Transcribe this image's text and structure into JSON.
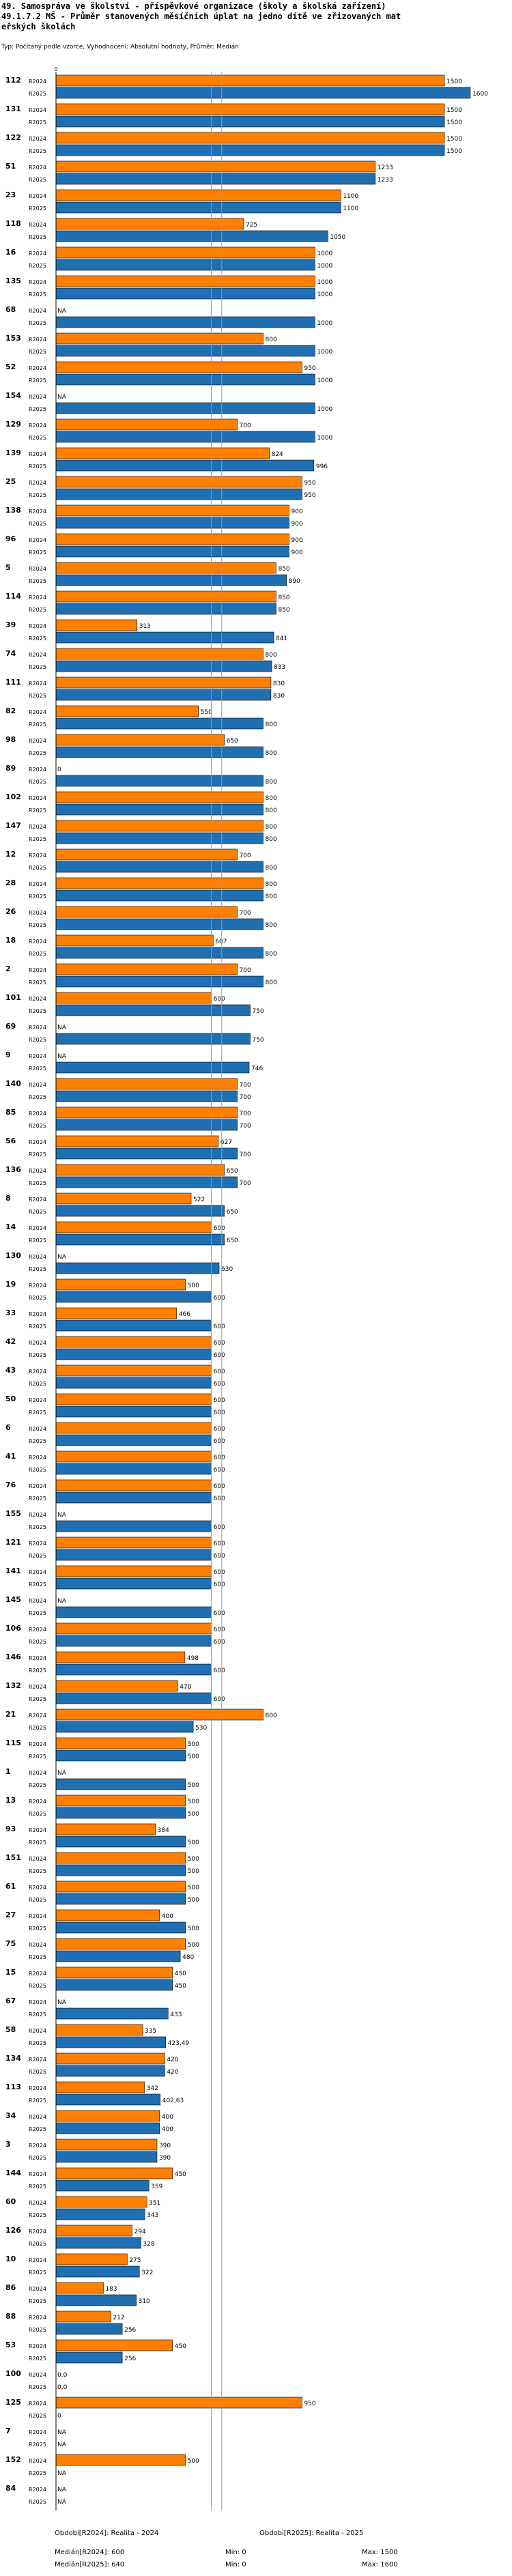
{
  "header": {
    "line1": "49. Samospráva ve školství - příspěvkové organizace (školy a školská zařízení)",
    "line2": "49.1.7.2 MŠ - Průměr stanovených měsíčních úplat na jedno dítě ve zřizovaných mat",
    "line3": "eřských školách",
    "subtitle": "Typ: Počítaný podle vzorce, Vyhodnocení: Absolutní hodnoty, Průměr: Medián"
  },
  "series_names": [
    "R2024",
    "R2025"
  ],
  "colors": {
    "R2024": "#ff8000",
    "R2025": "#1f6fb2",
    "median": "#ff8000",
    "median2025": "#999999"
  },
  "chart_data": {
    "type": "bar",
    "orientation": "horizontal",
    "xlim": [
      0,
      1600
    ],
    "median_lines": [
      {
        "name": "Medián(R2024)",
        "value": 600
      },
      {
        "name": "Medián(R2025)",
        "value": 640
      }
    ],
    "rows": [
      {
        "id": "112",
        "v": [
          1500,
          1600
        ],
        "l": [
          "1500",
          "1600"
        ]
      },
      {
        "id": "131",
        "v": [
          1500,
          1500
        ],
        "l": [
          "1500",
          "1500"
        ]
      },
      {
        "id": "122",
        "v": [
          1500,
          1500
        ],
        "l": [
          "1500",
          "1500"
        ]
      },
      {
        "id": "51",
        "v": [
          1233,
          1233
        ],
        "l": [
          "1233",
          "1233"
        ]
      },
      {
        "id": "23",
        "v": [
          1100,
          1100
        ],
        "l": [
          "1100",
          "1100"
        ]
      },
      {
        "id": "118",
        "v": [
          725,
          1050
        ],
        "l": [
          "725",
          "1050"
        ]
      },
      {
        "id": "16",
        "v": [
          1000,
          1000
        ],
        "l": [
          "1000",
          "1000"
        ]
      },
      {
        "id": "135",
        "v": [
          1000,
          1000
        ],
        "l": [
          "1000",
          "1000"
        ]
      },
      {
        "id": "68",
        "v": [
          null,
          1000
        ],
        "l": [
          "NA",
          "1000"
        ]
      },
      {
        "id": "153",
        "v": [
          800,
          1000
        ],
        "l": [
          "800",
          "1000"
        ]
      },
      {
        "id": "52",
        "v": [
          950,
          1000
        ],
        "l": [
          "950",
          "1000"
        ]
      },
      {
        "id": "154",
        "v": [
          null,
          1000
        ],
        "l": [
          "NA",
          "1000"
        ]
      },
      {
        "id": "129",
        "v": [
          700,
          1000
        ],
        "l": [
          "700",
          "1000"
        ]
      },
      {
        "id": "139",
        "v": [
          824,
          996
        ],
        "l": [
          "824",
          "996"
        ]
      },
      {
        "id": "25",
        "v": [
          950,
          950
        ],
        "l": [
          "950",
          "950"
        ]
      },
      {
        "id": "138",
        "v": [
          900,
          900
        ],
        "l": [
          "900",
          "900"
        ]
      },
      {
        "id": "96",
        "v": [
          900,
          900
        ],
        "l": [
          "900",
          "900"
        ]
      },
      {
        "id": "5",
        "v": [
          850,
          890
        ],
        "l": [
          "850",
          "890"
        ]
      },
      {
        "id": "114",
        "v": [
          850,
          850
        ],
        "l": [
          "850",
          "850"
        ]
      },
      {
        "id": "39",
        "v": [
          313,
          841
        ],
        "l": [
          "313",
          "841"
        ]
      },
      {
        "id": "74",
        "v": [
          800,
          833
        ],
        "l": [
          "800",
          "833"
        ]
      },
      {
        "id": "111",
        "v": [
          830,
          830
        ],
        "l": [
          "830",
          "830"
        ]
      },
      {
        "id": "82",
        "v": [
          550,
          800
        ],
        "l": [
          "550",
          "800"
        ]
      },
      {
        "id": "98",
        "v": [
          650,
          800
        ],
        "l": [
          "650",
          "800"
        ]
      },
      {
        "id": "89",
        "v": [
          0,
          800
        ],
        "l": [
          "0",
          "800"
        ]
      },
      {
        "id": "102",
        "v": [
          800,
          800
        ],
        "l": [
          "800",
          "800"
        ]
      },
      {
        "id": "147",
        "v": [
          800,
          800
        ],
        "l": [
          "800",
          "800"
        ]
      },
      {
        "id": "12",
        "v": [
          700,
          800
        ],
        "l": [
          "700",
          "800"
        ]
      },
      {
        "id": "28",
        "v": [
          800,
          800
        ],
        "l": [
          "800",
          "800"
        ]
      },
      {
        "id": "26",
        "v": [
          700,
          800
        ],
        "l": [
          "700",
          "800"
        ]
      },
      {
        "id": "18",
        "v": [
          607,
          800
        ],
        "l": [
          "607",
          "800"
        ]
      },
      {
        "id": "2",
        "v": [
          700,
          800
        ],
        "l": [
          "700",
          "800"
        ]
      },
      {
        "id": "101",
        "v": [
          600,
          750
        ],
        "l": [
          "600",
          "750"
        ]
      },
      {
        "id": "69",
        "v": [
          null,
          750
        ],
        "l": [
          "NA",
          "750"
        ]
      },
      {
        "id": "9",
        "v": [
          null,
          746
        ],
        "l": [
          "NA",
          "746"
        ]
      },
      {
        "id": "140",
        "v": [
          700,
          700
        ],
        "l": [
          "700",
          "700"
        ]
      },
      {
        "id": "85",
        "v": [
          700,
          700
        ],
        "l": [
          "700",
          "700"
        ]
      },
      {
        "id": "56",
        "v": [
          627,
          700
        ],
        "l": [
          "627",
          "700"
        ]
      },
      {
        "id": "136",
        "v": [
          650,
          700
        ],
        "l": [
          "650",
          "700"
        ]
      },
      {
        "id": "8",
        "v": [
          522,
          650
        ],
        "l": [
          "522",
          "650"
        ]
      },
      {
        "id": "14",
        "v": [
          600,
          650
        ],
        "l": [
          "600",
          "650"
        ]
      },
      {
        "id": "130",
        "v": [
          null,
          630
        ],
        "l": [
          "NA",
          "630"
        ]
      },
      {
        "id": "19",
        "v": [
          500,
          600
        ],
        "l": [
          "500",
          "600"
        ]
      },
      {
        "id": "33",
        "v": [
          466,
          600
        ],
        "l": [
          "466",
          "600"
        ]
      },
      {
        "id": "42",
        "v": [
          600,
          600
        ],
        "l": [
          "600",
          "600"
        ]
      },
      {
        "id": "43",
        "v": [
          600,
          600
        ],
        "l": [
          "600",
          "600"
        ]
      },
      {
        "id": "50",
        "v": [
          600,
          600
        ],
        "l": [
          "600",
          "600"
        ]
      },
      {
        "id": "6",
        "v": [
          600,
          600
        ],
        "l": [
          "600",
          "600"
        ]
      },
      {
        "id": "41",
        "v": [
          600,
          600
        ],
        "l": [
          "600",
          "600"
        ]
      },
      {
        "id": "76",
        "v": [
          600,
          600
        ],
        "l": [
          "600",
          "600"
        ]
      },
      {
        "id": "155",
        "v": [
          null,
          600
        ],
        "l": [
          "NA",
          "600"
        ]
      },
      {
        "id": "121",
        "v": [
          600,
          600
        ],
        "l": [
          "600",
          "600"
        ]
      },
      {
        "id": "141",
        "v": [
          600,
          600
        ],
        "l": [
          "600",
          "600"
        ]
      },
      {
        "id": "145",
        "v": [
          null,
          600
        ],
        "l": [
          "NA",
          "600"
        ]
      },
      {
        "id": "106",
        "v": [
          600,
          600
        ],
        "l": [
          "600",
          "600"
        ]
      },
      {
        "id": "146",
        "v": [
          498,
          600
        ],
        "l": [
          "498",
          "600"
        ]
      },
      {
        "id": "132",
        "v": [
          470,
          600
        ],
        "l": [
          "470",
          "600"
        ]
      },
      {
        "id": "21",
        "v": [
          800,
          530
        ],
        "l": [
          "800",
          "530"
        ]
      },
      {
        "id": "115",
        "v": [
          500,
          500
        ],
        "l": [
          "500",
          "500"
        ]
      },
      {
        "id": "1",
        "v": [
          null,
          500
        ],
        "l": [
          "NA",
          "500"
        ]
      },
      {
        "id": "13",
        "v": [
          500,
          500
        ],
        "l": [
          "500",
          "500"
        ]
      },
      {
        "id": "93",
        "v": [
          384,
          500
        ],
        "l": [
          "384",
          "500"
        ]
      },
      {
        "id": "151",
        "v": [
          500,
          500
        ],
        "l": [
          "500",
          "500"
        ]
      },
      {
        "id": "61",
        "v": [
          500,
          500
        ],
        "l": [
          "500",
          "500"
        ]
      },
      {
        "id": "27",
        "v": [
          400,
          500
        ],
        "l": [
          "400",
          "500"
        ]
      },
      {
        "id": "75",
        "v": [
          500,
          480
        ],
        "l": [
          "500",
          "480"
        ]
      },
      {
        "id": "15",
        "v": [
          450,
          450
        ],
        "l": [
          "450",
          "450"
        ]
      },
      {
        "id": "67",
        "v": [
          null,
          433
        ],
        "l": [
          "NA",
          "433"
        ]
      },
      {
        "id": "58",
        "v": [
          335,
          423.49
        ],
        "l": [
          "335",
          "423,49"
        ]
      },
      {
        "id": "134",
        "v": [
          420,
          420
        ],
        "l": [
          "420",
          "420"
        ]
      },
      {
        "id": "113",
        "v": [
          342,
          402.63
        ],
        "l": [
          "342",
          "402,63"
        ]
      },
      {
        "id": "34",
        "v": [
          400,
          400
        ],
        "l": [
          "400",
          "400"
        ]
      },
      {
        "id": "3",
        "v": [
          390,
          390
        ],
        "l": [
          "390",
          "390"
        ]
      },
      {
        "id": "144",
        "v": [
          450,
          359
        ],
        "l": [
          "450",
          "359"
        ]
      },
      {
        "id": "60",
        "v": [
          351,
          343
        ],
        "l": [
          "351",
          "343"
        ]
      },
      {
        "id": "126",
        "v": [
          294,
          328
        ],
        "l": [
          "294",
          "328"
        ]
      },
      {
        "id": "10",
        "v": [
          275,
          322
        ],
        "l": [
          "275",
          "322"
        ]
      },
      {
        "id": "86",
        "v": [
          183,
          310
        ],
        "l": [
          "183",
          "310"
        ]
      },
      {
        "id": "88",
        "v": [
          212,
          256
        ],
        "l": [
          "212",
          "256"
        ]
      },
      {
        "id": "53",
        "v": [
          450,
          256
        ],
        "l": [
          "450",
          "256"
        ]
      },
      {
        "id": "100",
        "v": [
          0,
          0
        ],
        "l": [
          "0,0",
          "0,0"
        ]
      },
      {
        "id": "125",
        "v": [
          950,
          0
        ],
        "l": [
          "950",
          "0"
        ]
      },
      {
        "id": "7",
        "v": [
          null,
          null
        ],
        "l": [
          "NA",
          "NA"
        ]
      },
      {
        "id": "152",
        "v": [
          500,
          null
        ],
        "l": [
          "500",
          "NA"
        ]
      },
      {
        "id": "84",
        "v": [
          null,
          null
        ],
        "l": [
          "NA",
          "NA"
        ]
      }
    ]
  },
  "footer": {
    "avg2024_label": "Obdobi[R2024]: Realita - 2024",
    "avg2025_label": "Obdobi[R2025]: Realita - 2025",
    "med2024": "Medián[R2024]: 600",
    "med2025": "Medián[R2025]: 640",
    "min2024": "Min: 0",
    "min2025": "Min: 0",
    "max2024": "Max: 1500",
    "max2025": "Max: 1600"
  }
}
